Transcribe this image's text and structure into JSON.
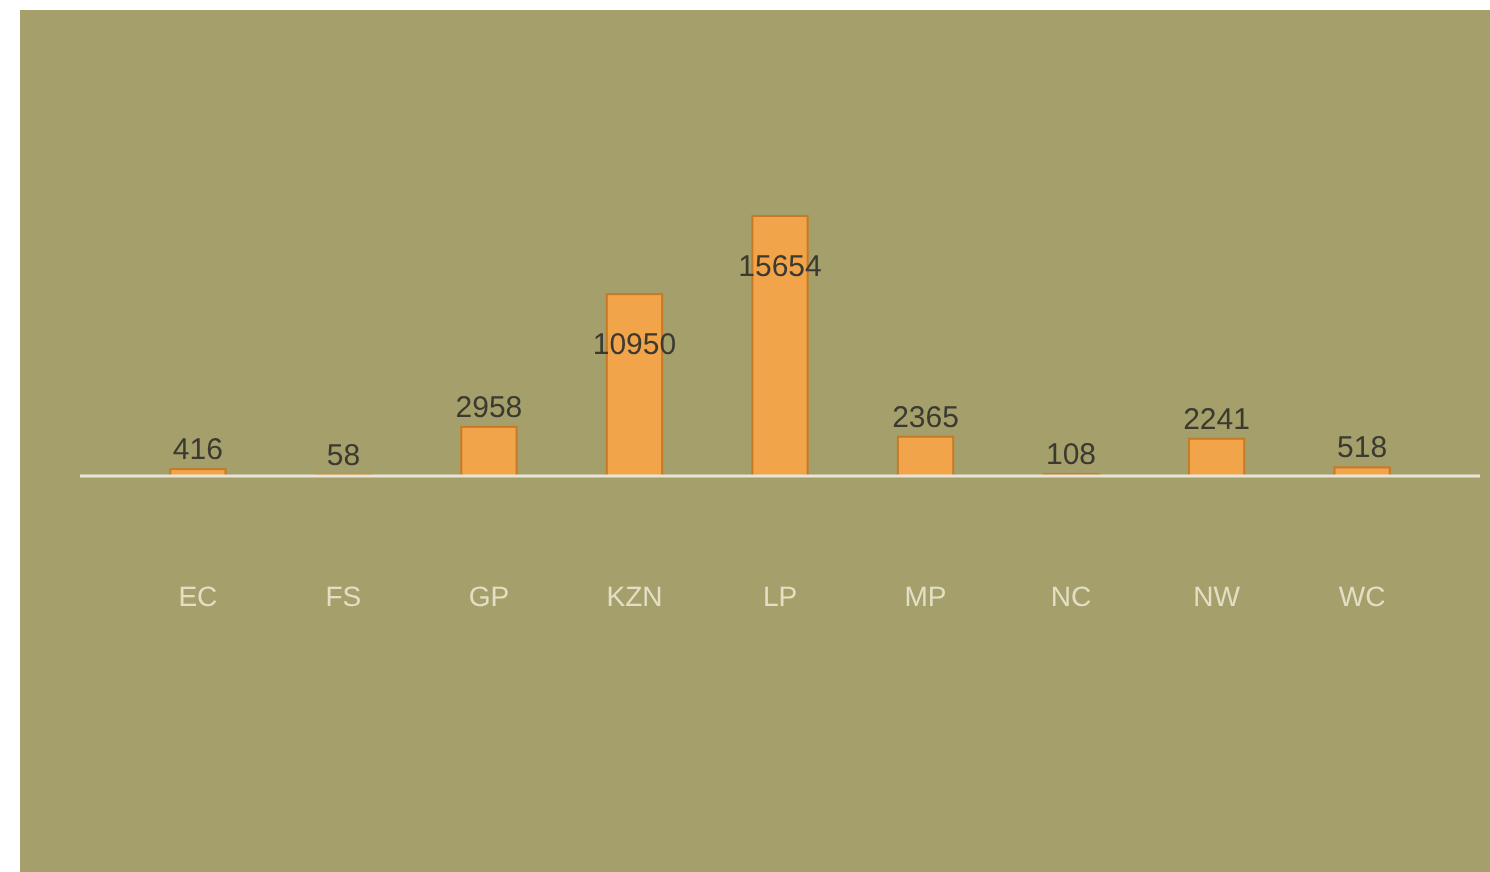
{
  "chart_data": {
    "type": "bar",
    "categories": [
      "EC",
      "FS",
      "GP",
      "KZN",
      "LP",
      "MP",
      "NC",
      "NW",
      "WC"
    ],
    "values": [
      416,
      58,
      2958,
      10950,
      15654,
      2365,
      108,
      2241,
      518
    ],
    "color": "#f2a44a",
    "data_labels": true
  }
}
